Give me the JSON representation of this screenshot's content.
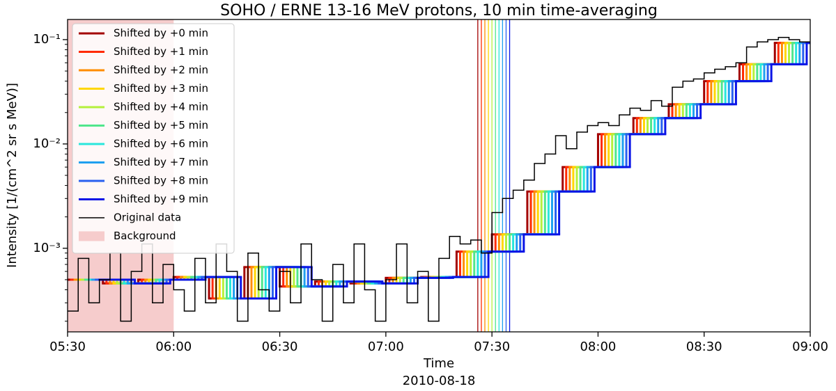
{
  "chart_data": {
    "type": "step",
    "title": "SOHO / ERNE 13-16 MeV protons, 10 min time-averaging",
    "xlabel": "Time",
    "date_label": "2010-08-18",
    "ylabel": "Intensity [1/(cm^2 sr s MeV)]",
    "log_y": true,
    "xlim": [
      "05:30",
      "09:00"
    ],
    "ylim": [
      0.000158,
      0.156
    ],
    "xticks": [
      "05:30",
      "06:00",
      "06:30",
      "07:00",
      "07:30",
      "08:00",
      "08:30",
      "09:00"
    ],
    "yticks": [
      {
        "value": 0.001,
        "label": "10⁻³"
      },
      {
        "value": 0.01,
        "label": "10⁻²"
      },
      {
        "value": 0.1,
        "label": "10⁻¹"
      }
    ],
    "legend": "upper left",
    "background": {
      "name": "Background",
      "color": "#f6cccc",
      "x": [
        "05:30",
        "06:00"
      ]
    },
    "series": [
      {
        "name": "Shifted by +0 min",
        "color": "#a30000",
        "linewidth": 3,
        "onset": "07:26",
        "bins": [
          "05:30",
          "05:40",
          "05:50",
          "06:00",
          "06:10",
          "06:20",
          "06:30",
          "06:40",
          "06:50",
          "07:00",
          "07:10",
          "07:20",
          "07:30",
          "07:40",
          "07:50",
          "08:00",
          "08:10",
          "08:20",
          "08:30",
          "08:40",
          "08:50",
          "09:00"
        ],
        "values": [
          0.0005,
          0.00046,
          0.0005,
          0.00053,
          0.00033,
          0.00066,
          0.00043,
          0.00048,
          0.00046,
          0.00052,
          0.00053,
          0.00093,
          0.00136,
          0.0035,
          0.006,
          0.0124,
          0.0177,
          0.024,
          0.04,
          0.058,
          0.093
        ]
      },
      {
        "name": "Shifted by +1 min",
        "color": "#ff2a00",
        "linewidth": 3,
        "onset": "07:27",
        "bins": [
          "05:31",
          "05:41",
          "05:51",
          "06:01",
          "06:11",
          "06:21",
          "06:31",
          "06:41",
          "06:51",
          "07:01",
          "07:11",
          "07:21",
          "07:31",
          "07:41",
          "07:51",
          "08:01",
          "08:11",
          "08:21",
          "08:31",
          "08:41",
          "08:51",
          "09:00"
        ],
        "values": [
          0.0005,
          0.00046,
          0.0005,
          0.00053,
          0.00033,
          0.00066,
          0.00043,
          0.00048,
          0.00046,
          0.00052,
          0.00053,
          0.00093,
          0.00136,
          0.0035,
          0.006,
          0.0124,
          0.0177,
          0.024,
          0.04,
          0.058,
          0.093
        ]
      },
      {
        "name": "Shifted by +2 min",
        "color": "#ff8c00",
        "linewidth": 3,
        "onset": "07:28",
        "bins": [
          "05:32",
          "05:42",
          "05:52",
          "06:02",
          "06:12",
          "06:22",
          "06:32",
          "06:42",
          "06:52",
          "07:02",
          "07:12",
          "07:22",
          "07:32",
          "07:42",
          "07:52",
          "08:02",
          "08:12",
          "08:22",
          "08:32",
          "08:42",
          "08:52",
          "09:00"
        ],
        "values": [
          0.0005,
          0.00046,
          0.0005,
          0.00053,
          0.00033,
          0.00066,
          0.00043,
          0.00048,
          0.00046,
          0.00052,
          0.00053,
          0.00093,
          0.00136,
          0.0035,
          0.006,
          0.0124,
          0.0177,
          0.024,
          0.04,
          0.058,
          0.093
        ]
      },
      {
        "name": "Shifted by +3 min",
        "color": "#ffd700",
        "linewidth": 3,
        "onset": "07:29",
        "bins": [
          "05:33",
          "05:43",
          "05:53",
          "06:03",
          "06:13",
          "06:23",
          "06:33",
          "06:43",
          "06:53",
          "07:03",
          "07:13",
          "07:23",
          "07:33",
          "07:43",
          "07:53",
          "08:03",
          "08:13",
          "08:23",
          "08:33",
          "08:43",
          "08:53",
          "09:00"
        ],
        "values": [
          0.0005,
          0.00046,
          0.0005,
          0.00053,
          0.00033,
          0.00066,
          0.00043,
          0.00048,
          0.00046,
          0.00052,
          0.00053,
          0.00093,
          0.00136,
          0.0035,
          0.006,
          0.0124,
          0.0177,
          0.024,
          0.04,
          0.058,
          0.093
        ]
      },
      {
        "name": "Shifted by +4 min",
        "color": "#b4f03c",
        "linewidth": 3,
        "onset": "07:30",
        "bins": [
          "05:34",
          "05:44",
          "05:54",
          "06:04",
          "06:14",
          "06:24",
          "06:34",
          "06:44",
          "06:54",
          "07:04",
          "07:14",
          "07:24",
          "07:34",
          "07:44",
          "07:54",
          "08:04",
          "08:14",
          "08:24",
          "08:34",
          "08:44",
          "08:54",
          "09:00"
        ],
        "values": [
          0.0005,
          0.00046,
          0.0005,
          0.00053,
          0.00033,
          0.00066,
          0.00043,
          0.00048,
          0.00046,
          0.00052,
          0.00053,
          0.00093,
          0.00136,
          0.0035,
          0.006,
          0.0124,
          0.0177,
          0.024,
          0.04,
          0.058,
          0.093
        ]
      },
      {
        "name": "Shifted by +5 min",
        "color": "#50e68c",
        "linewidth": 3,
        "onset": "07:31",
        "bins": [
          "05:35",
          "05:45",
          "05:55",
          "06:05",
          "06:15",
          "06:25",
          "06:35",
          "06:45",
          "06:55",
          "07:05",
          "07:15",
          "07:25",
          "07:35",
          "07:45",
          "07:55",
          "08:05",
          "08:15",
          "08:25",
          "08:35",
          "08:45",
          "08:55",
          "09:00"
        ],
        "values": [
          0.0005,
          0.00046,
          0.0005,
          0.00053,
          0.00033,
          0.00066,
          0.00043,
          0.00048,
          0.00046,
          0.00052,
          0.00053,
          0.00093,
          0.00136,
          0.0035,
          0.006,
          0.0124,
          0.0177,
          0.024,
          0.04,
          0.058,
          0.093
        ]
      },
      {
        "name": "Shifted by +6 min",
        "color": "#28e6dc",
        "linewidth": 3,
        "onset": "07:32",
        "bins": [
          "05:36",
          "05:46",
          "05:56",
          "06:06",
          "06:16",
          "06:26",
          "06:36",
          "06:46",
          "06:56",
          "07:06",
          "07:16",
          "07:26",
          "07:36",
          "07:46",
          "07:56",
          "08:06",
          "08:16",
          "08:26",
          "08:36",
          "08:46",
          "08:56",
          "09:00"
        ],
        "values": [
          0.0005,
          0.00046,
          0.0005,
          0.00053,
          0.00033,
          0.00066,
          0.00043,
          0.00048,
          0.00046,
          0.00052,
          0.00053,
          0.00093,
          0.00136,
          0.0035,
          0.006,
          0.0124,
          0.0177,
          0.024,
          0.04,
          0.058,
          0.093
        ]
      },
      {
        "name": "Shifted by +7 min",
        "color": "#1ea0f0",
        "linewidth": 3,
        "onset": "07:33",
        "bins": [
          "05:37",
          "05:47",
          "05:57",
          "06:07",
          "06:17",
          "06:27",
          "06:37",
          "06:47",
          "06:57",
          "07:07",
          "07:17",
          "07:27",
          "07:37",
          "07:47",
          "07:57",
          "08:07",
          "08:17",
          "08:27",
          "08:37",
          "08:47",
          "08:57",
          "09:00"
        ],
        "values": [
          0.0005,
          0.00046,
          0.0005,
          0.00053,
          0.00033,
          0.00066,
          0.00043,
          0.00048,
          0.00046,
          0.00052,
          0.00053,
          0.00093,
          0.00136,
          0.0035,
          0.006,
          0.0124,
          0.0177,
          0.024,
          0.04,
          0.058,
          0.093
        ]
      },
      {
        "name": "Shifted by +8 min",
        "color": "#2860f0",
        "linewidth": 3,
        "onset": "07:34",
        "bins": [
          "05:38",
          "05:48",
          "05:58",
          "06:08",
          "06:18",
          "06:28",
          "06:38",
          "06:48",
          "06:58",
          "07:08",
          "07:18",
          "07:28",
          "07:38",
          "07:48",
          "07:58",
          "08:08",
          "08:18",
          "08:28",
          "08:38",
          "08:48",
          "08:58",
          "09:00"
        ],
        "values": [
          0.0005,
          0.00046,
          0.0005,
          0.00053,
          0.00033,
          0.00066,
          0.00043,
          0.00048,
          0.00046,
          0.00052,
          0.00053,
          0.00093,
          0.00136,
          0.0035,
          0.006,
          0.0124,
          0.0177,
          0.024,
          0.04,
          0.058,
          0.093
        ]
      },
      {
        "name": "Shifted by +9 min",
        "color": "#0a14e6",
        "linewidth": 3,
        "onset": "07:35",
        "bins": [
          "05:39",
          "05:49",
          "05:59",
          "06:09",
          "06:19",
          "06:29",
          "06:39",
          "06:49",
          "06:59",
          "07:09",
          "07:19",
          "07:29",
          "07:39",
          "07:49",
          "07:59",
          "08:09",
          "08:19",
          "08:29",
          "08:39",
          "08:49",
          "08:59",
          "09:00"
        ],
        "values": [
          0.0005,
          0.00046,
          0.0005,
          0.00053,
          0.00033,
          0.00066,
          0.00043,
          0.00048,
          0.00046,
          0.00052,
          0.00053,
          0.00093,
          0.00136,
          0.0035,
          0.006,
          0.0124,
          0.0177,
          0.024,
          0.04,
          0.058,
          0.093
        ]
      },
      {
        "name": "Original data",
        "color": "#000000",
        "linewidth": 1.5,
        "bins": [
          "05:30",
          "05:33",
          "05:36",
          "05:39",
          "05:42",
          "05:45",
          "05:48",
          "05:51",
          "05:54",
          "05:57",
          "06:00",
          "06:03",
          "06:06",
          "06:09",
          "06:12",
          "06:15",
          "06:18",
          "06:21",
          "06:24",
          "06:27",
          "06:30",
          "06:33",
          "06:36",
          "06:39",
          "06:42",
          "06:45",
          "06:48",
          "06:51",
          "06:54",
          "06:57",
          "07:00",
          "07:03",
          "07:06",
          "07:09",
          "07:12",
          "07:15",
          "07:18",
          "07:21",
          "07:24",
          "07:27",
          "07:30",
          "07:33",
          "07:36",
          "07:39",
          "07:42",
          "07:45",
          "07:48",
          "07:51",
          "07:54",
          "07:57",
          "08:00",
          "08:03",
          "08:06",
          "08:09",
          "08:12",
          "08:15",
          "08:18",
          "08:21",
          "08:24",
          "08:27",
          "08:30",
          "08:33",
          "08:36",
          "08:39",
          "08:42",
          "08:45",
          "08:48",
          "08:51",
          "08:54",
          "08:57",
          "09:00"
        ],
        "values": [
          0.00025,
          0.0008,
          0.0003,
          0.0005,
          0.0009,
          0.0002,
          0.0006,
          0.0011,
          0.0003,
          0.0007,
          0.0004,
          0.00025,
          0.0008,
          0.0003,
          0.0011,
          0.0006,
          0.0002,
          0.0009,
          0.0004,
          0.00025,
          0.0006,
          0.0003,
          0.0011,
          0.0005,
          0.0002,
          0.0007,
          0.0003,
          0.0011,
          0.0004,
          0.0002,
          0.0005,
          0.0011,
          0.0003,
          0.0006,
          0.0002,
          0.0008,
          0.0013,
          0.0011,
          0.0012,
          0.0009,
          0.0022,
          0.003,
          0.0036,
          0.0045,
          0.0065,
          0.008,
          0.012,
          0.009,
          0.013,
          0.015,
          0.016,
          0.015,
          0.019,
          0.022,
          0.021,
          0.026,
          0.023,
          0.035,
          0.04,
          0.042,
          0.048,
          0.052,
          0.055,
          0.06,
          0.085,
          0.095,
          0.1,
          0.105,
          0.1,
          0.095
        ]
      }
    ]
  }
}
